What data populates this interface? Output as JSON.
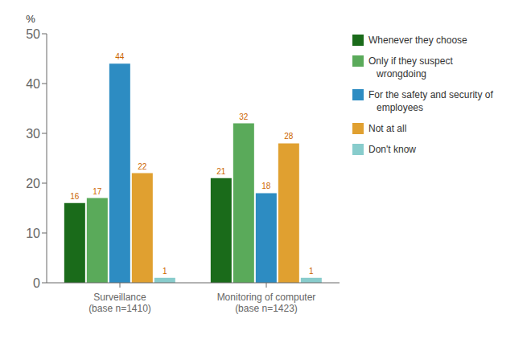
{
  "chart_data": {
    "type": "bar",
    "categories": [
      "Surveillance\n(base n=1410)",
      "Monitoring of computer\n(base n=1423)"
    ],
    "series": [
      {
        "name": "Whenever they choose",
        "color": "#1a6b1a",
        "values": [
          16,
          21
        ]
      },
      {
        "name": "Only if they suspect\n   wrongdoing",
        "color": "#5aaa5a",
        "values": [
          17,
          32
        ]
      },
      {
        "name": "For the safety and security of\n   employees",
        "color": "#2d8cc2",
        "values": [
          44,
          18
        ]
      },
      {
        "name": "Not at all",
        "color": "#e0a030",
        "values": [
          22,
          28
        ]
      },
      {
        "name": "Don't know",
        "color": "#88cccc",
        "values": [
          1,
          1
        ]
      }
    ],
    "ylabel": "%",
    "ylim": [
      0,
      50
    ],
    "yticks": [
      0,
      10,
      20,
      30,
      40,
      50
    ],
    "grid": false,
    "legend": "right",
    "data_labels": true
  }
}
